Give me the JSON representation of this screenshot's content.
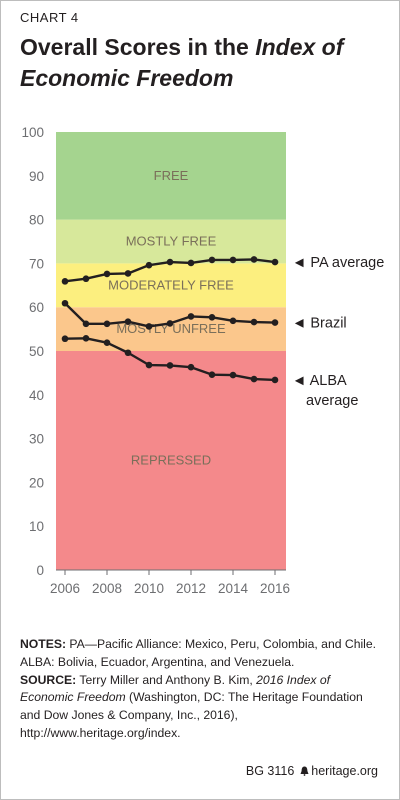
{
  "chart_label": "CHART 4",
  "title": {
    "part1": "Overall Scores in the ",
    "part2_italic": "Index of Economic Freedom"
  },
  "chart_data": {
    "type": "line",
    "x": [
      2006,
      2007,
      2008,
      2009,
      2010,
      2011,
      2012,
      2013,
      2014,
      2015,
      2016
    ],
    "xticks": [
      "2006",
      "2008",
      "2010",
      "2012",
      "2014",
      "2016"
    ],
    "xlim": [
      2006,
      2016
    ],
    "ylim": [
      0,
      100
    ],
    "yticks": [
      "0",
      "10",
      "20",
      "30",
      "40",
      "50",
      "60",
      "70",
      "80",
      "90",
      "100"
    ],
    "bands": [
      {
        "label": "REPRESSED",
        "from": 0,
        "to": 50,
        "color": "#f4898b"
      },
      {
        "label": "MOSTLY UNFREE",
        "from": 50,
        "to": 60,
        "color": "#fbc78c"
      },
      {
        "label": "MODERATELY FREE",
        "from": 60,
        "to": 70,
        "color": "#fcef7f"
      },
      {
        "label": "MOSTLY FREE",
        "from": 70,
        "to": 80,
        "color": "#d7e89b"
      },
      {
        "label": "FREE",
        "from": 80,
        "to": 100,
        "color": "#a5d48f"
      }
    ],
    "series": [
      {
        "name": "PA average",
        "values": [
          65.9,
          66.5,
          67.6,
          67.7,
          69.6,
          70.3,
          70.1,
          70.8,
          70.8,
          70.9,
          70.3
        ]
      },
      {
        "name": "Brazil",
        "values": [
          60.9,
          56.2,
          56.2,
          56.7,
          55.6,
          56.3,
          57.9,
          57.7,
          56.9,
          56.6,
          56.5
        ]
      },
      {
        "name": "ALBA average",
        "values": [
          52.8,
          52.9,
          51.9,
          49.6,
          46.8,
          46.7,
          46.3,
          44.6,
          44.5,
          43.6,
          43.4
        ]
      }
    ],
    "series_labels": [
      {
        "lines": [
          "◄ PA average"
        ],
        "at": 70.3
      },
      {
        "lines": [
          "◄ Brazil"
        ],
        "at": 56.5
      },
      {
        "lines": [
          "◄ ALBA",
          "average"
        ],
        "at": 43.4
      }
    ]
  },
  "notes": {
    "notes_label": "NOTES:",
    "notes_text": " PA—Pacific Alliance: Mexico, Peru, Colombia, and Chile. ALBA: Bolivia, Ecuador, Argentina, and Venezuela.",
    "source_label": "SOURCE:",
    "source_text1": " Terry Miller and Anthony B. Kim, ",
    "source_italic": "2016 Index of Economic Freedom",
    "source_text2": " (Washington, DC: The Heritage Foundation and Dow Jones & Company, Inc., 2016), http://www.heritage.org/index."
  },
  "footer": {
    "code": "BG 3116",
    "site": "heritage.org"
  },
  "colors": {
    "line": "#231f20",
    "axis_text": "#6d6e71"
  }
}
